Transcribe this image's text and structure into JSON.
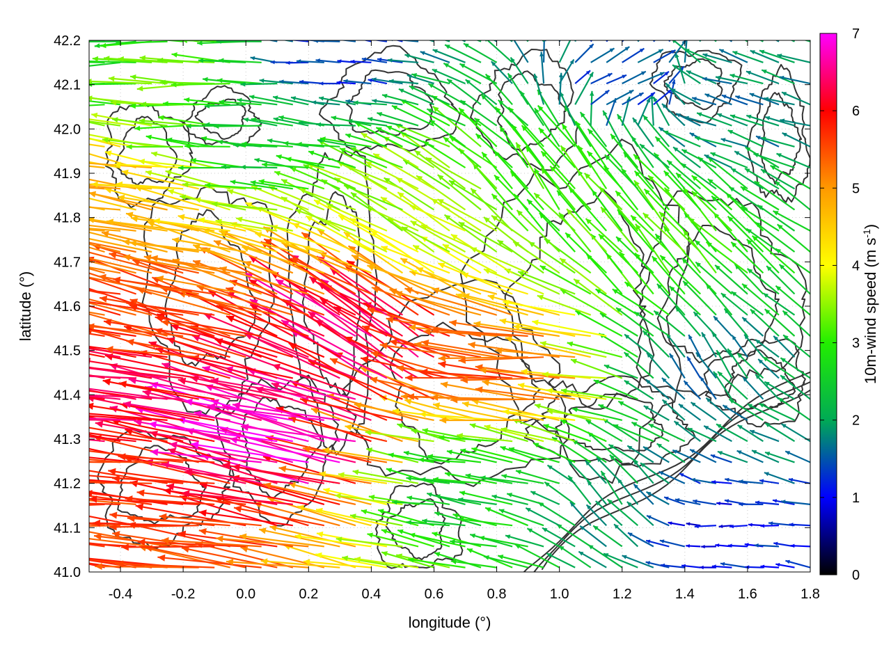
{
  "chart_data": {
    "type": "vector-field",
    "xlabel": "longitude (°)",
    "ylabel": "latitude (°)",
    "xlim": [
      -0.5,
      1.8
    ],
    "ylim": [
      41.0,
      42.2
    ],
    "xticks": [
      "-0.4",
      "-0.2",
      "0.0",
      "0.2",
      "0.4",
      "0.6",
      "0.8",
      "1.0",
      "1.2",
      "1.4",
      "1.6",
      "1.8"
    ],
    "xtick_values": [
      -0.4,
      -0.2,
      0.0,
      0.2,
      0.4,
      0.6,
      0.8,
      1.0,
      1.2,
      1.4,
      1.6,
      1.8
    ],
    "yticks": [
      "41.0",
      "41.1",
      "41.2",
      "41.3",
      "41.4",
      "41.5",
      "41.6",
      "41.7",
      "41.8",
      "41.9",
      "42.0",
      "42.1",
      "42.2"
    ],
    "ytick_values": [
      41.0,
      41.1,
      41.2,
      41.3,
      41.4,
      41.5,
      41.6,
      41.7,
      41.8,
      41.9,
      42.0,
      42.1,
      42.2
    ],
    "grid": true,
    "colorbar": {
      "label_main": "10m-wind speed (m s",
      "label_sup": "-1",
      "label_close": ")",
      "range": [
        0,
        7
      ],
      "ticks": [
        "0",
        "1",
        "2",
        "3",
        "4",
        "5",
        "6",
        "7"
      ],
      "tick_values": [
        0,
        1,
        2,
        3,
        4,
        5,
        6,
        7
      ],
      "palette": [
        "#000000",
        "#0000ff",
        "#00aa55",
        "#22ee00",
        "#ffff00",
        "#ff9900",
        "#ff0000",
        "#ff00ff"
      ]
    },
    "vectors": [
      {
        "lon": -0.45,
        "lat": 42.18,
        "u": -3.0,
        "v": 0.0,
        "speed": 2.6
      },
      {
        "lon": -0.2,
        "lat": 42.1,
        "u": -3.4,
        "v": 0.1,
        "speed": 3.3
      },
      {
        "lon": 0.1,
        "lat": 42.0,
        "u": -2.5,
        "v": 0.2,
        "speed": 2.4
      },
      {
        "lon": 0.3,
        "lat": 42.15,
        "u": -1.0,
        "v": 0.1,
        "speed": 1.2
      },
      {
        "lon": -0.4,
        "lat": 41.85,
        "u": -4.5,
        "v": 0.8,
        "speed": 4.8
      },
      {
        "lon": -0.3,
        "lat": 41.6,
        "u": -5.3,
        "v": 1.3,
        "speed": 5.5
      },
      {
        "lon": -0.4,
        "lat": 41.4,
        "u": -6.2,
        "v": 0.8,
        "speed": 6.4
      },
      {
        "lon": 0.2,
        "lat": 41.3,
        "u": -6.8,
        "v": 1.6,
        "speed": 6.9
      },
      {
        "lon": 0.45,
        "lat": 41.5,
        "u": -3.5,
        "v": 2.4,
        "speed": 6.5
      },
      {
        "lon": -0.3,
        "lat": 41.15,
        "u": -5.5,
        "v": 0.4,
        "speed": 5.6
      },
      {
        "lon": 0.6,
        "lat": 41.8,
        "u": -2.6,
        "v": 1.5,
        "speed": 3.6
      },
      {
        "lon": 1.0,
        "lat": 41.85,
        "u": -1.2,
        "v": 1.6,
        "speed": 3.0
      },
      {
        "lon": 0.9,
        "lat": 41.45,
        "u": -4.5,
        "v": 0.2,
        "speed": 5.5
      },
      {
        "lon": 0.75,
        "lat": 41.2,
        "u": -2.0,
        "v": 0.3,
        "speed": 2.5
      },
      {
        "lon": 1.2,
        "lat": 41.15,
        "u": -0.6,
        "v": 0.8,
        "speed": 2.0
      },
      {
        "lon": 1.5,
        "lat": 41.1,
        "u": -0.8,
        "v": 0.0,
        "speed": 1.0
      },
      {
        "lon": 1.45,
        "lat": 41.45,
        "u": -0.3,
        "v": 0.5,
        "speed": 1.7
      },
      {
        "lon": 1.3,
        "lat": 41.7,
        "u": -0.9,
        "v": 1.1,
        "speed": 3.1
      },
      {
        "lon": 1.2,
        "lat": 42.1,
        "u": 0.6,
        "v": 0.3,
        "speed": 1.4
      },
      {
        "lon": 1.6,
        "lat": 42.05,
        "u": -0.8,
        "v": 0.2,
        "speed": 1.8
      }
    ]
  }
}
